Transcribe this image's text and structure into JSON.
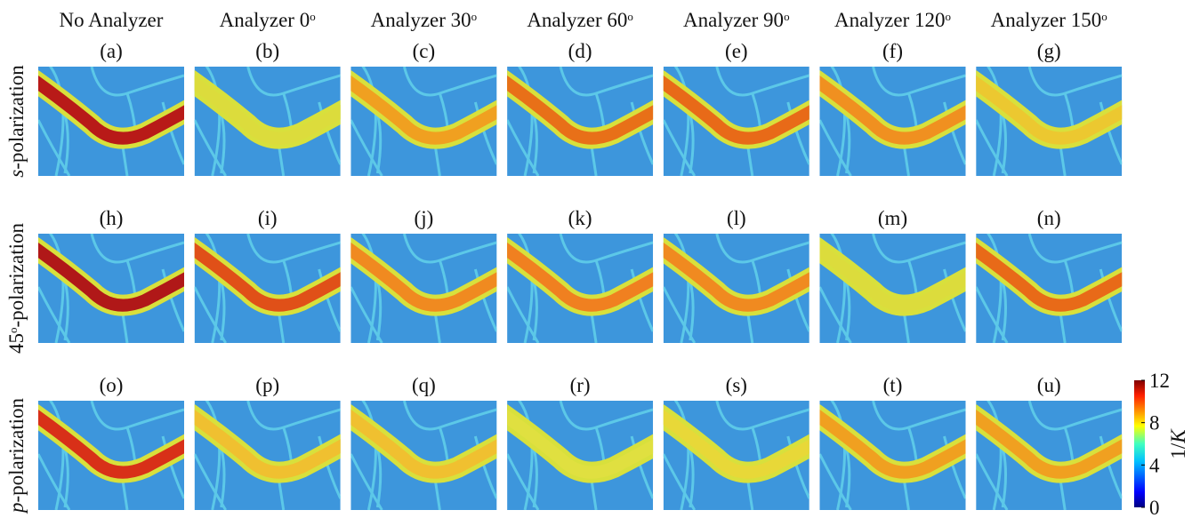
{
  "columns": [
    {
      "parts": [
        {
          "text": "No Analyzer"
        }
      ]
    },
    {
      "parts": [
        {
          "text": "Analyzer 0"
        },
        {
          "text": "o",
          "style": "sup"
        }
      ]
    },
    {
      "parts": [
        {
          "text": "Analyzer 30"
        },
        {
          "text": "o",
          "style": "sup"
        }
      ]
    },
    {
      "parts": [
        {
          "text": "Analyzer 60"
        },
        {
          "text": "o",
          "style": "sup"
        }
      ]
    },
    {
      "parts": [
        {
          "text": "Analyzer 90"
        },
        {
          "text": "o",
          "style": "sup"
        }
      ]
    },
    {
      "parts": [
        {
          "text": "Analyzer 120"
        },
        {
          "text": "o",
          "style": "sup"
        }
      ]
    },
    {
      "parts": [
        {
          "text": "Analyzer 150"
        },
        {
          "text": "o",
          "style": "sup"
        }
      ]
    }
  ],
  "rows": [
    {
      "parts": [
        {
          "text": "s",
          "style": "italic"
        },
        {
          "text": "-polarization"
        }
      ],
      "panels": [
        {
          "label": "(a)",
          "color": "#b81a18"
        },
        {
          "label": "(b)",
          "color": "#dcdc3c"
        },
        {
          "label": "(c)",
          "color": "#f0a020"
        },
        {
          "label": "(d)",
          "color": "#e87018"
        },
        {
          "label": "(e)",
          "color": "#e86a18"
        },
        {
          "label": "(f)",
          "color": "#f09020"
        },
        {
          "label": "(g)",
          "color": "#ecc830"
        }
      ]
    },
    {
      "parts": [
        {
          "text": "45"
        },
        {
          "text": "o",
          "style": "sup"
        },
        {
          "text": "-polarization"
        }
      ],
      "panels": [
        {
          "label": "(h)",
          "color": "#b01818"
        },
        {
          "label": "(i)",
          "color": "#e05018"
        },
        {
          "label": "(j)",
          "color": "#f08a20"
        },
        {
          "label": "(k)",
          "color": "#f08020"
        },
        {
          "label": "(l)",
          "color": "#f08a20"
        },
        {
          "label": "(m)",
          "color": "#dcdc3c"
        },
        {
          "label": "(n)",
          "color": "#e86a18"
        }
      ]
    },
    {
      "parts": [
        {
          "text": "p",
          "style": "italic"
        },
        {
          "text": "-polarization"
        }
      ],
      "panels": [
        {
          "label": "(o)",
          "color": "#d83018"
        },
        {
          "label": "(p)",
          "color": "#f0c030"
        },
        {
          "label": "(q)",
          "color": "#f0c030"
        },
        {
          "label": "(r)",
          "color": "#e0e040"
        },
        {
          "label": "(s)",
          "color": "#e8d838"
        },
        {
          "label": "(t)",
          "color": "#f0a020"
        },
        {
          "label": "(u)",
          "color": "#f0a020"
        }
      ]
    }
  ],
  "colorbar": {
    "lim": [
      0,
      12
    ],
    "ticks": [
      0,
      4,
      8,
      12
    ],
    "label": [
      {
        "text": "1/"
      },
      {
        "text": "K",
        "style": "italic"
      }
    ]
  }
}
